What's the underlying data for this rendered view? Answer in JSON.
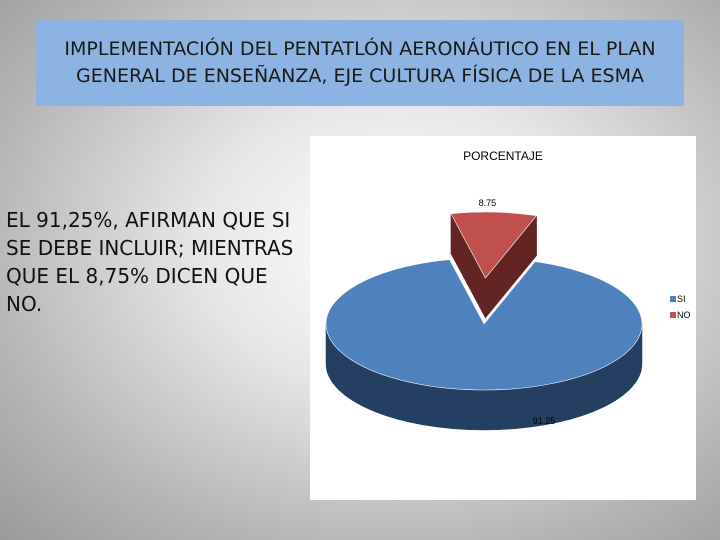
{
  "slide": {
    "title": "IMPLEMENTACIÓN DEL PENTATLÓN AERONÁUTICO EN EL PLAN GENERAL DE ENSEÑANZA, EJE CULTURA FÍSICA DE LA ESMA",
    "body": "EL 91,25%, AFIRMAN QUE SI SE DEBE INCLUIR; MIENTRAS QUE EL 8,75% DICEN QUE NO."
  },
  "chart_data": {
    "type": "pie",
    "title": "PORCENTAJE",
    "categories": [
      "SI",
      "NO"
    ],
    "values": [
      91.25,
      8.75
    ],
    "data_labels": [
      "91.25",
      "8.75"
    ],
    "colors": [
      "#4f81bd",
      "#c0504d"
    ],
    "side_colors": [
      "#243f62",
      "#632523"
    ],
    "exploded": "NO",
    "three_d": true,
    "legend_position": "right"
  }
}
